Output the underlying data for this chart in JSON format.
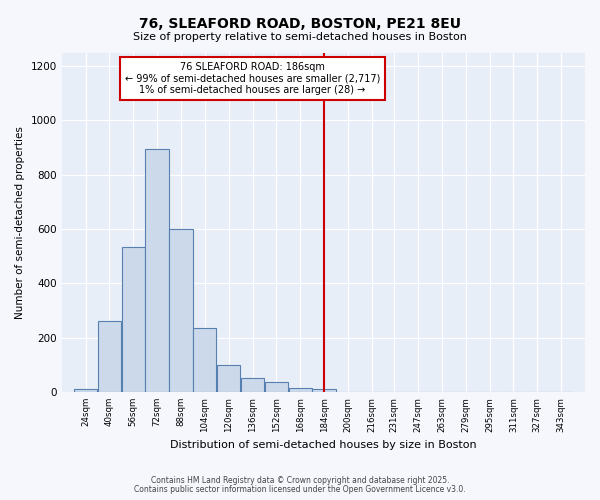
{
  "title1": "76, SLEAFORD ROAD, BOSTON, PE21 8EU",
  "title2": "Size of property relative to semi-detached houses in Boston",
  "xlabel": "Distribution of semi-detached houses by size in Boston",
  "ylabel": "Number of semi-detached properties",
  "tick_labels": [
    "24sqm",
    "40sqm",
    "56sqm",
    "72sqm",
    "88sqm",
    "104sqm",
    "120sqm",
    "136sqm",
    "152sqm",
    "168sqm",
    "184sqm",
    "200sqm",
    "216sqm",
    "231sqm",
    "247sqm",
    "263sqm",
    "279sqm",
    "295sqm",
    "311sqm",
    "327sqm",
    "343sqm"
  ],
  "tick_values": [
    24,
    40,
    56,
    72,
    88,
    104,
    120,
    136,
    152,
    168,
    184,
    200,
    216,
    231,
    247,
    263,
    279,
    295,
    311,
    327,
    343
  ],
  "bar_heights": [
    10,
    260,
    535,
    895,
    600,
    235,
    100,
    50,
    35,
    15,
    10,
    0,
    0,
    0,
    0,
    0,
    0,
    0,
    0,
    0,
    0
  ],
  "bar_color": "#ccd9ea",
  "bar_edge_color": "#5580b0",
  "background_color": "#e8eef8",
  "grid_color": "#ffffff",
  "vline_x": 184,
  "vline_color": "#cc0000",
  "ylim": [
    0,
    1250
  ],
  "yticks": [
    0,
    200,
    400,
    600,
    800,
    1000,
    1200
  ],
  "annotation_title": "76 SLEAFORD ROAD: 186sqm",
  "annotation_line1": "← 99% of semi-detached houses are smaller (2,717)",
  "annotation_line2": "1% of semi-detached houses are larger (28) →",
  "annotation_box_color": "#ffffff",
  "annotation_box_edge": "#cc0000",
  "footer1": "Contains HM Land Registry data © Crown copyright and database right 2025.",
  "footer2": "Contains public sector information licensed under the Open Government Licence v3.0.",
  "fig_bg": "#f5f7fc"
}
